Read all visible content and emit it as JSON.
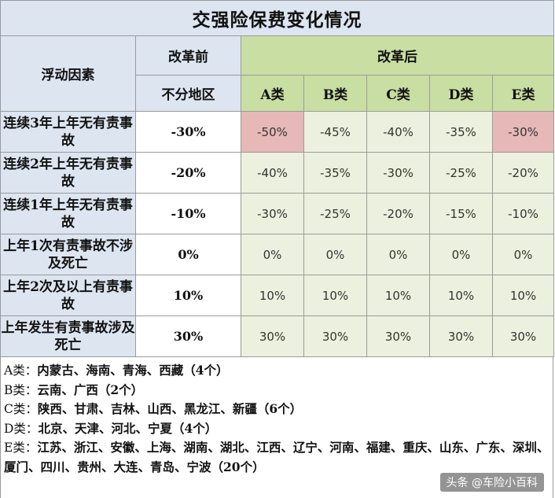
{
  "title": "交强险保费变化情况",
  "header": {
    "factor": "浮动因素",
    "before": "改革前",
    "after": "改革后",
    "no_region": "不分地区",
    "classes": [
      "A类",
      "B类",
      "C类",
      "D类",
      "E类"
    ]
  },
  "rows": [
    {
      "factor": "连续3年上年无有责事故",
      "before": "-30%",
      "after": [
        "-50%",
        "-45%",
        "-40%",
        "-35%",
        "-30%"
      ]
    },
    {
      "factor": "连续2年上年无有责事故",
      "before": "-20%",
      "after": [
        "-40%",
        "-35%",
        "-30%",
        "-25%",
        "-20%"
      ]
    },
    {
      "factor": "连续1年上年无有责事故",
      "before": "-10%",
      "after": [
        "-30%",
        "-25%",
        "-20%",
        "-15%",
        "-10%"
      ]
    },
    {
      "factor": "上年1次有责事故不涉及死亡",
      "before": "0%",
      "after": [
        "0%",
        "0%",
        "0%",
        "0%",
        "0%"
      ]
    },
    {
      "factor": "上年2次及以上有责事故",
      "before": "10%",
      "after": [
        "10%",
        "10%",
        "10%",
        "10%",
        "10%"
      ]
    },
    {
      "factor": "上年发生有责事故涉及死亡",
      "before": "30%",
      "after": [
        "30%",
        "30%",
        "30%",
        "30%",
        "30%"
      ]
    }
  ],
  "highlight_color": "#e6b8b7",
  "notes": [
    {
      "label": "A类：",
      "text": "内蒙古、海南、青海、西藏（4个）"
    },
    {
      "label": "B类：",
      "text": "云南、广西（2个）"
    },
    {
      "label": "C类：",
      "text": "陕西、甘肃、吉林、山西、黑龙江、新疆（6个）"
    },
    {
      "label": "D类：",
      "text": "北京、天津、河北、宁夏（4个）"
    },
    {
      "label": "E类：",
      "text": "江苏、浙江、安徽、上海、湖南、湖北、江西、辽宁、河南、福建、重庆、山东、广东、深圳、厦门、四川、贵州、大连、青岛、宁波（20个）"
    }
  ],
  "watermark": "头条 @车险小百科"
}
